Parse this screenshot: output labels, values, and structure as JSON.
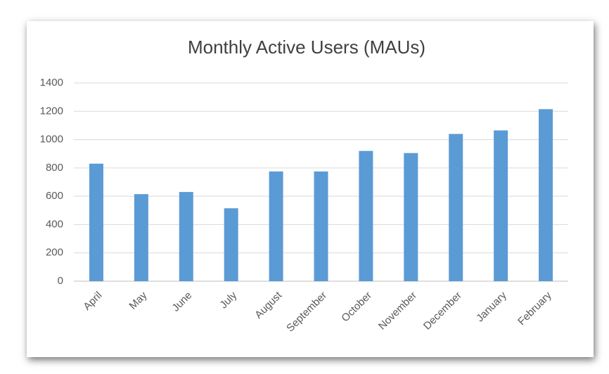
{
  "chart_data": {
    "type": "bar",
    "title": "Monthly Active Users (MAUs)",
    "categories": [
      "April",
      "May",
      "June",
      "July",
      "August",
      "September",
      "October",
      "November",
      "December",
      "January",
      "February"
    ],
    "values": [
      830,
      615,
      630,
      515,
      775,
      775,
      920,
      905,
      1040,
      1065,
      1215
    ],
    "color": "#5b9bd5",
    "ylim": [
      0,
      1400
    ],
    "yticks": [
      0,
      200,
      400,
      600,
      800,
      1000,
      1200,
      1400
    ],
    "grid": true
  }
}
